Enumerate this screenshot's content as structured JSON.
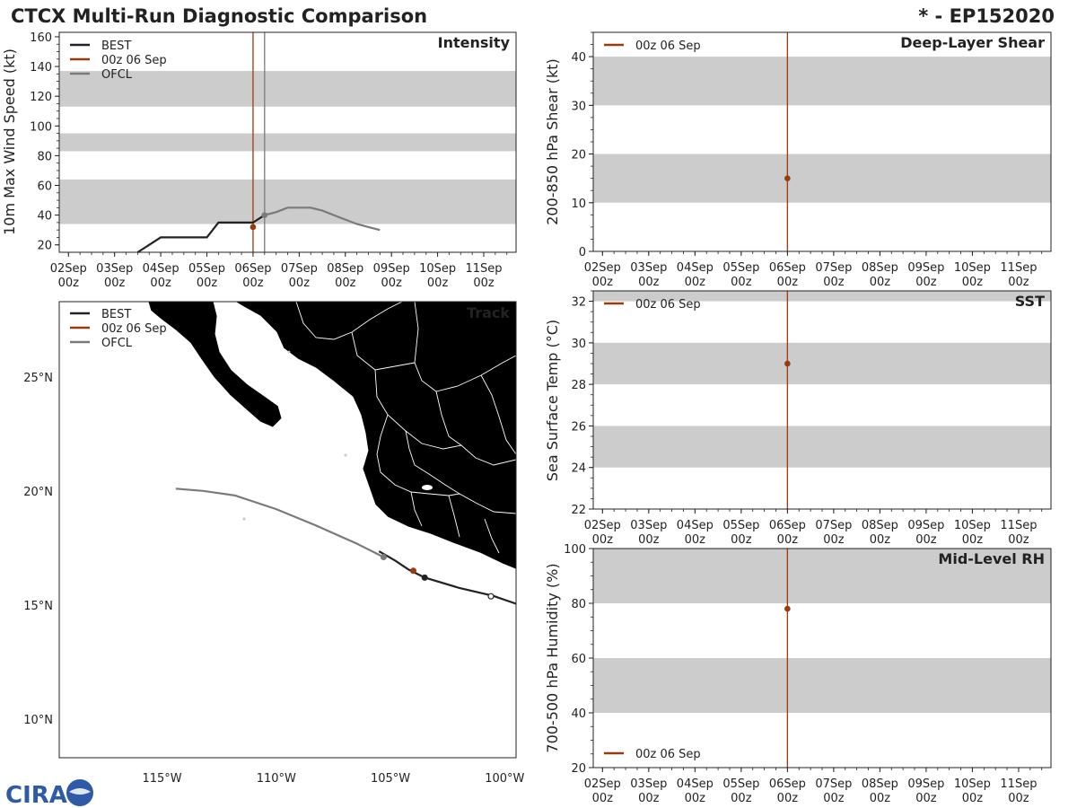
{
  "header": {
    "title": "CTCX Multi-Run Diagnostic Comparison",
    "storm": "* - EP152020"
  },
  "logo": {
    "text": "CIRA"
  },
  "colors": {
    "best": "#222222",
    "run": "#9c3a0c",
    "ofcl": "#7a7a7a",
    "band": "#cccccc",
    "land": "#cccccc"
  },
  "time_axis": {
    "dates": [
      "02Sep",
      "03Sep",
      "04Sep",
      "05Sep",
      "06Sep",
      "07Sep",
      "08Sep",
      "09Sep",
      "10Sep",
      "11Sep"
    ],
    "hour": "00z",
    "start_day": 1.8,
    "end_day": 11.7
  },
  "chart_data": [
    {
      "id": "intensity",
      "type": "line",
      "title": "Intensity",
      "ylabel": "10m Max Wind Speed (kt)",
      "ylim": [
        15,
        163
      ],
      "yticks": [
        20,
        40,
        60,
        80,
        100,
        120,
        140,
        160
      ],
      "bands": [
        [
          34,
          64
        ],
        [
          83,
          95
        ],
        [
          113,
          137
        ]
      ],
      "legend": [
        "BEST",
        "00z 06 Sep",
        "OFCL"
      ],
      "vlines": [
        {
          "series": "run",
          "day": 6.0
        },
        {
          "series": "ofcl",
          "day": 6.25
        }
      ],
      "series": [
        {
          "name": "BEST",
          "x": [
            3.5,
            3.75,
            4.0,
            4.25,
            4.5,
            4.75,
            5.0,
            5.25,
            5.5,
            5.75,
            6.0,
            6.25
          ],
          "y": [
            15,
            20,
            25,
            25,
            25,
            25,
            25,
            35,
            35,
            35,
            35,
            40
          ]
        },
        {
          "name": "OFCL",
          "x": [
            6.25,
            6.5,
            6.75,
            7.0,
            7.25,
            7.5,
            7.75,
            8.0,
            8.25,
            8.5,
            8.75
          ],
          "y": [
            40,
            42,
            45,
            45,
            45,
            43,
            40,
            37,
            34,
            32,
            30
          ]
        }
      ],
      "points": [
        {
          "series": "run",
          "x": 6.0,
          "y": 32
        },
        {
          "series": "ofcl",
          "x": 6.25,
          "y": 40
        }
      ]
    },
    {
      "id": "shear",
      "type": "line",
      "title": "Deep-Layer Shear",
      "ylabel": "200-850 hPa Shear (kt)",
      "ylim": [
        0,
        45
      ],
      "yticks": [
        0,
        10,
        20,
        30,
        40
      ],
      "bands": [
        [
          10,
          20
        ],
        [
          30,
          40
        ]
      ],
      "legend": [
        "00z 06 Sep"
      ],
      "vlines": [
        {
          "series": "run",
          "day": 6.0
        }
      ],
      "points": [
        {
          "series": "run",
          "x": 6.0,
          "y": 15
        }
      ]
    },
    {
      "id": "sst",
      "type": "line",
      "title": "SST",
      "ylabel": "Sea Surface Temp (°C)",
      "ylim": [
        22,
        32.5
      ],
      "yticks": [
        22,
        24,
        26,
        28,
        30,
        32
      ],
      "bands": [
        [
          24,
          26
        ],
        [
          28,
          30
        ],
        [
          32,
          33
        ]
      ],
      "legend": [
        "00z 06 Sep"
      ],
      "vlines": [
        {
          "series": "run",
          "day": 6.0
        }
      ],
      "points": [
        {
          "series": "run",
          "x": 6.0,
          "y": 29
        }
      ]
    },
    {
      "id": "rh",
      "type": "line",
      "title": "Mid-Level RH",
      "ylabel": "700-500 hPa Humidity (%)",
      "ylim": [
        20,
        100
      ],
      "yticks": [
        20,
        40,
        60,
        80,
        100
      ],
      "bands": [
        [
          40,
          60
        ],
        [
          80,
          100
        ]
      ],
      "legend": [
        "00z 06 Sep"
      ],
      "legend_position": "bottom-left",
      "vlines": [
        {
          "series": "run",
          "day": 6.0
        }
      ],
      "points": [
        {
          "series": "run",
          "x": 6.0,
          "y": 78
        }
      ]
    },
    {
      "id": "track",
      "type": "map",
      "title": "Track",
      "legend": [
        "BEST",
        "00z 06 Sep",
        "OFCL"
      ],
      "lon_range": [
        -119.5,
        -99.5
      ],
      "lat_range": [
        8.3,
        28.3
      ],
      "xticks": [
        -115,
        -110,
        -105,
        -100
      ],
      "xtick_labels": [
        "115°W",
        "110°W",
        "105°W",
        "100°W"
      ],
      "yticks": [
        10,
        15,
        20,
        25
      ],
      "ytick_labels": [
        "10°N",
        "15°N",
        "20°N",
        "25°N"
      ],
      "best_track": [
        [
          -99.5,
          15.05
        ],
        [
          -100.5,
          15.4
        ],
        [
          -102.0,
          15.75
        ],
        [
          -103.5,
          16.2
        ],
        [
          -104.2,
          16.55
        ],
        [
          -104.8,
          16.95
        ],
        [
          -105.5,
          17.35
        ]
      ],
      "ofcl_track": [
        [
          -105.3,
          17.1
        ],
        [
          -106.5,
          17.7
        ],
        [
          -108.3,
          18.5
        ],
        [
          -110.0,
          19.2
        ],
        [
          -111.8,
          19.8
        ],
        [
          -113.2,
          20.0
        ],
        [
          -114.4,
          20.1
        ]
      ],
      "points": [
        {
          "series": "best_open",
          "lon": -100.6,
          "lat": 15.38
        },
        {
          "series": "best",
          "lon": -103.5,
          "lat": 16.2
        },
        {
          "series": "run",
          "lon": -104.0,
          "lat": 16.5
        },
        {
          "series": "ofcl",
          "lon": -105.3,
          "lat": 17.1
        }
      ]
    }
  ]
}
